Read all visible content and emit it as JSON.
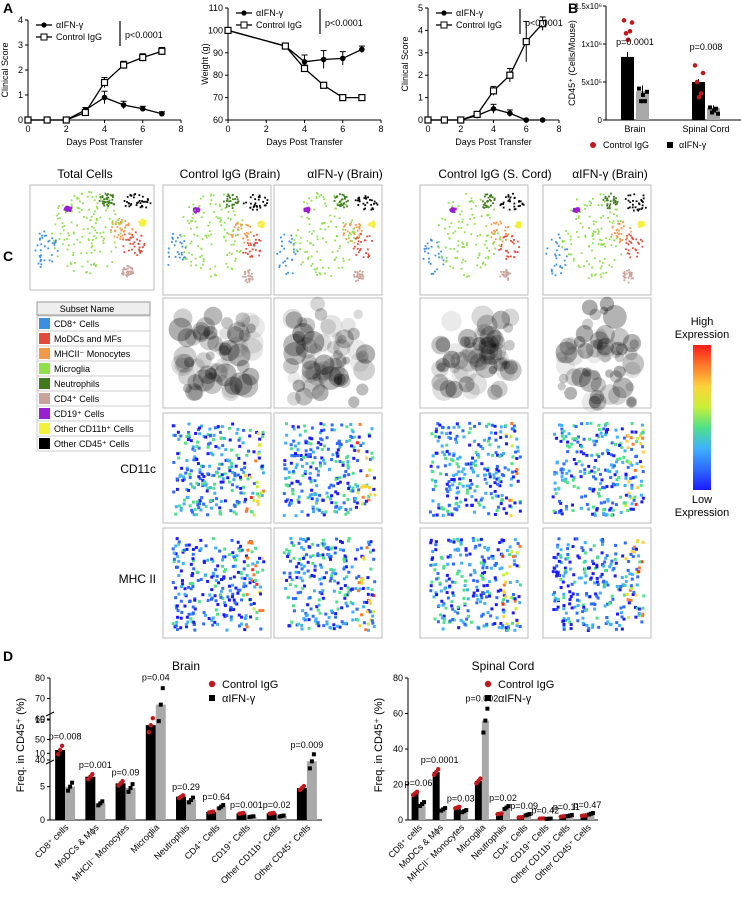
{
  "panels": {
    "a": "A",
    "b": "B",
    "c": "C",
    "d": "D"
  },
  "chart_data": [
    {
      "type": "line",
      "id": "A1",
      "ylabel": "Clinical Score",
      "xlabel": "Days Post Transfer",
      "xlim": [
        0,
        8
      ],
      "ylim": [
        0,
        4
      ],
      "xticks": [
        "0",
        "2",
        "4",
        "6",
        "8"
      ],
      "yticks": [
        "0",
        "1",
        "2",
        "3",
        "4"
      ],
      "pvalue": "p<0.0001",
      "series": [
        {
          "name": "αIFN-γ",
          "marker": "filled",
          "x": [
            0,
            1,
            2,
            3,
            4,
            5,
            6,
            7
          ],
          "y": [
            0,
            0,
            0,
            0.4,
            0.9,
            0.6,
            0.45,
            0.25
          ],
          "err": [
            0,
            0,
            0,
            0.1,
            0.25,
            0.15,
            0.1,
            0.08
          ]
        },
        {
          "name": "Control IgG",
          "marker": "open",
          "x": [
            0,
            1,
            2,
            3,
            4,
            5,
            6,
            7
          ],
          "y": [
            0,
            0,
            0,
            0.3,
            1.5,
            2.2,
            2.5,
            2.75
          ],
          "err": [
            0,
            0,
            0,
            0.1,
            0.2,
            0.15,
            0.15,
            0.15
          ]
        }
      ]
    },
    {
      "type": "line",
      "id": "A2",
      "ylabel": "Weight (g)",
      "xlabel": "Days Post Transfer",
      "xlim": [
        0,
        8
      ],
      "ylim": [
        60,
        110
      ],
      "xticks": [
        "0",
        "2",
        "4",
        "6",
        "8"
      ],
      "yticks": [
        "60",
        "70",
        "80",
        "90",
        "100",
        "110"
      ],
      "pvalue": "p<0.0001",
      "series": [
        {
          "name": "αIFN-γ",
          "marker": "filled",
          "x": [
            0,
            3,
            4,
            5,
            6,
            7
          ],
          "y": [
            100,
            93,
            86,
            87,
            87.5,
            91.5
          ],
          "err": [
            0,
            0.5,
            3,
            4,
            3,
            1.5
          ]
        },
        {
          "name": "Control IgG",
          "marker": "open",
          "x": [
            0,
            3,
            4,
            5,
            6,
            7
          ],
          "y": [
            100,
            93,
            83,
            75.5,
            70,
            70
          ],
          "err": [
            0,
            0.5,
            1.5,
            1,
            1,
            1
          ]
        }
      ]
    },
    {
      "type": "line",
      "id": "A3",
      "ylabel": "Clinical Score",
      "xlabel": "Days Post Transfer",
      "xlim": [
        0,
        8
      ],
      "ylim": [
        0,
        5
      ],
      "xticks": [
        "0",
        "2",
        "4",
        "6",
        "8"
      ],
      "yticks": [
        "0",
        "1",
        "2",
        "3",
        "4",
        "5"
      ],
      "pvalue": "p<0.0001",
      "series": [
        {
          "name": "αIFN-γ",
          "marker": "filled",
          "x": [
            0,
            1,
            2,
            3,
            4,
            5,
            6,
            7
          ],
          "y": [
            0,
            0,
            0,
            0.2,
            0.5,
            0.3,
            0,
            0
          ],
          "err": [
            0,
            0,
            0,
            0.1,
            0.2,
            0.15,
            0,
            0
          ]
        },
        {
          "name": "Control IgG",
          "marker": "open",
          "x": [
            0,
            1,
            2,
            3,
            4,
            5,
            6,
            7
          ],
          "y": [
            0,
            0,
            0,
            0.25,
            1.3,
            2.0,
            3.5,
            4.3
          ],
          "err": [
            0,
            0,
            0,
            0.1,
            0.2,
            0.3,
            0.9,
            0.3
          ]
        }
      ]
    },
    {
      "type": "bar",
      "id": "B",
      "ylabel": "CD45⁺ (Cells/Mouse)",
      "yticks": [
        "0",
        "5x10⁵",
        "1x10⁶",
        "1.5x10⁶"
      ],
      "ylim": [
        0,
        1500000
      ],
      "categories": [
        "Brain",
        "Spinal Cord"
      ],
      "pvalues": [
        "p=0.0001",
        "p=0.008"
      ],
      "series": [
        {
          "name": "Control IgG",
          "values": [
            830000,
            500000
          ]
        },
        {
          "name": "αIFN-γ",
          "values": [
            380000,
            160000
          ]
        }
      ]
    },
    {
      "type": "bar",
      "id": "D1",
      "title": "Brain",
      "ylabel": "Freq. in CD45⁺ (%)",
      "yticks_low": [
        "0",
        "5",
        "10",
        "15"
      ],
      "yticks_high": [
        "40",
        "50",
        "60",
        "70",
        "80"
      ],
      "categories": [
        "CD8⁺ cells",
        "MoDCs & Mϕs",
        "MHCII⁻ Monocytes",
        "Microglia",
        "Neutrophils",
        "CD4⁺ Cells",
        "CD19⁺ Cells",
        "Other CD11b⁺ Cells",
        "Other CD45⁺ Cells"
      ],
      "pvalues": [
        "p=0.008",
        "p=0.001",
        "p=0.09",
        "p=0.04",
        "p=0.29",
        "p=0.64",
        "p=0.001",
        "p=0.02",
        "p=0.009"
      ],
      "series": [
        {
          "name": "Control IgG",
          "values": [
            10.5,
            6.5,
            5.5,
            57,
            3.5,
            1.2,
            1.0,
            1.0,
            4.8
          ]
        },
        {
          "name": "αIFN-γ",
          "values": [
            5.0,
            2.5,
            4.8,
            67,
            3.0,
            2.0,
            0.5,
            0.6,
            8.8
          ]
        }
      ]
    },
    {
      "type": "bar",
      "id": "D2",
      "title": "Spinal Cord",
      "ylabel": "Freq. in CD45⁺ (%)",
      "ylim": [
        0,
        80
      ],
      "yticks": [
        "0",
        "20",
        "40",
        "60",
        "80"
      ],
      "categories": [
        "CD8⁺ cells",
        "MoDCs & Mϕs",
        "MHCII⁻ Monocytes",
        "Microglia",
        "Neutrophils",
        "CD4⁺ Cells",
        "CD19⁺ Cells",
        "Other CD11b⁺ Cells",
        "Other CD45⁺ Cells"
      ],
      "pvalues": [
        "p=0.06",
        "p=0.0001",
        "p=0.03",
        "p=0.002",
        "p=0.02",
        "p=0.09",
        "p=0.42",
        "p=0.11",
        "p=0.47"
      ],
      "series": [
        {
          "name": "Control IgG",
          "values": [
            15,
            27,
            7,
            22,
            3.5,
            1.5,
            0.8,
            2.0,
            2.5
          ]
        },
        {
          "name": "αIFN-γ",
          "values": [
            9,
            6,
            5,
            56,
            7,
            3.0,
            0.7,
            2.5,
            3.5
          ]
        }
      ]
    }
  ],
  "tsne": {
    "column_titles": [
      "Total Cells",
      "Control IgG (Brain)",
      "αIFN-γ (Brain)",
      "Control IgG (S. Cord)",
      "αIFN-γ (Brain)"
    ],
    "row_labels": [
      "CD11c",
      "MHC II"
    ],
    "legend_header": "Subset Name",
    "subsets": [
      {
        "name": "CD8⁺ Cells",
        "color": "#3b8fe0"
      },
      {
        "name": "MoDCs and MFs",
        "color": "#e24b3b"
      },
      {
        "name": "MHCII⁻ Monocytes",
        "color": "#f39a4a"
      },
      {
        "name": "Microglia",
        "color": "#8fe04a"
      },
      {
        "name": "Neutrophils",
        "color": "#3f7a1e"
      },
      {
        "name": "CD4⁺ Cells",
        "color": "#c9a39a"
      },
      {
        "name": "CD19⁺ Cells",
        "color": "#9b1fd0"
      },
      {
        "name": "Other CD11b⁺ Cells",
        "color": "#f4f03a"
      },
      {
        "name": "Other CD45⁺ Cells",
        "color": "#000000"
      }
    ],
    "scale_high": "High Expression",
    "scale_low": "Low Expression"
  },
  "colors": {
    "control_bar": "#000000",
    "control_dot": "#c0181c",
    "aifn_bar": "#a9a9a9",
    "aifn_dot": "#000000"
  }
}
